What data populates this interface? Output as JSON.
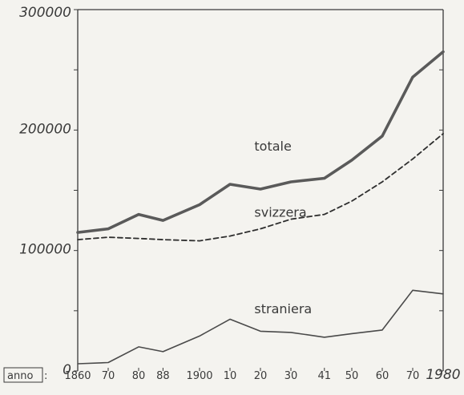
{
  "chart_data": {
    "type": "line",
    "x_label": "anno",
    "x_tick_labels": [
      "1860",
      "70",
      "80",
      "88",
      "1900",
      "10",
      "20",
      "30",
      "41",
      "50",
      "60",
      "70",
      "1980"
    ],
    "x_years": [
      1860,
      1870,
      1880,
      1888,
      1900,
      1910,
      1920,
      1930,
      1941,
      1950,
      1960,
      1970,
      1980
    ],
    "y_tick_labels": [
      "0",
      "100000",
      "200000",
      "300000"
    ],
    "ylim": [
      0,
      300000
    ],
    "series": [
      {
        "name": "totale",
        "style": "solid-thick",
        "color": "#5a5a5a",
        "values": [
          115000,
          118000,
          130000,
          125000,
          138000,
          155000,
          151000,
          157000,
          160000,
          175000,
          195000,
          244000,
          265000
        ]
      },
      {
        "name": "svizzera",
        "style": "dashed",
        "color": "#2e2e2e",
        "values": [
          109000,
          111000,
          110000,
          109000,
          108000,
          112000,
          118000,
          126000,
          130000,
          141000,
          157000,
          176000,
          197000
        ]
      },
      {
        "name": "straniera",
        "style": "solid-thin",
        "color": "#4a4a4a",
        "values": [
          6000,
          7000,
          20000,
          16000,
          29000,
          43000,
          33000,
          32000,
          28000,
          31000,
          34000,
          67000,
          64000
        ]
      }
    ]
  }
}
